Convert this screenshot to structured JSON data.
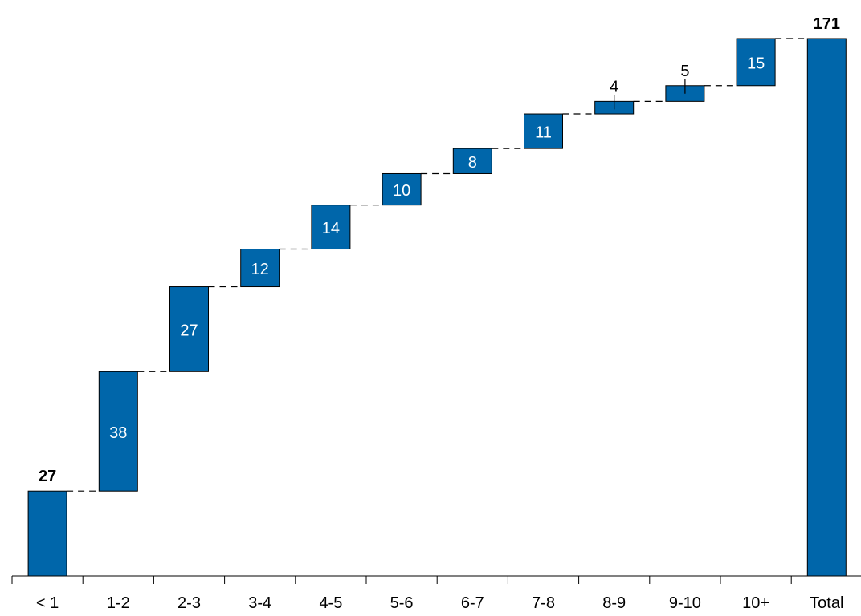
{
  "chart_data": {
    "type": "bar",
    "subtype": "waterfall",
    "categories": [
      "< 1",
      "1-2",
      "2-3",
      "3-4",
      "4-5",
      "5-6",
      "6-7",
      "7-8",
      "8-9",
      "9-10",
      "10+",
      "Total"
    ],
    "values": [
      27,
      38,
      27,
      12,
      14,
      10,
      8,
      11,
      4,
      5,
      15,
      171
    ],
    "labels": [
      "27",
      "38",
      "27",
      "12",
      "14",
      "10",
      "8",
      "11",
      "4",
      "5",
      "15",
      "171"
    ],
    "bar_kind": [
      "total",
      "delta",
      "delta",
      "delta",
      "delta",
      "delta",
      "delta",
      "delta",
      "delta",
      "delta",
      "delta",
      "total"
    ],
    "total_label": "Total",
    "title": "",
    "xlabel": "",
    "ylabel": "",
    "ylim": [
      0,
      171
    ],
    "grid": false,
    "legend": "none",
    "colors": {
      "bar": "#0066AA",
      "bar_edge": "#000000",
      "connector": "#000000",
      "inside_label": "#ffffff",
      "outside_label": "#000000"
    }
  }
}
